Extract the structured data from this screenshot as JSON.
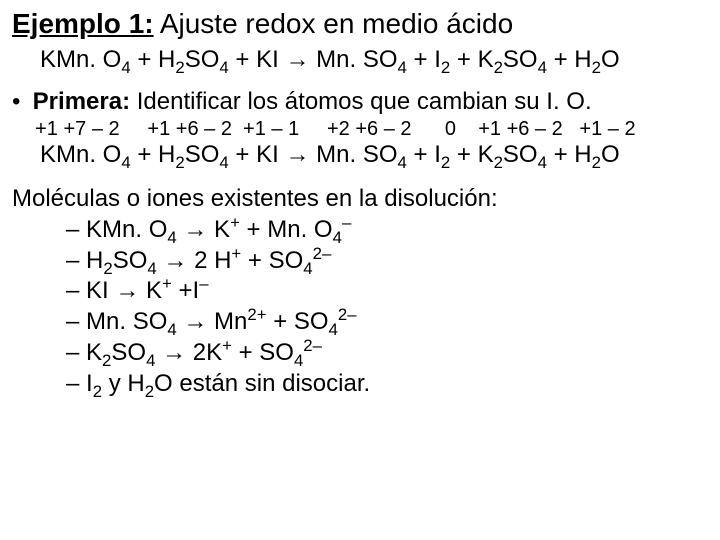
{
  "title": {
    "ex": "Ejemplo 1:",
    "rest": " Ajuste redox en medio ácido"
  },
  "eq1": {
    "lhs": [
      "KMn. O",
      "4",
      " + H",
      "2",
      "SO",
      "4",
      " + KI"
    ],
    "rhs": [
      "Mn. SO",
      "4",
      " + I",
      "2",
      " + K",
      "2",
      "SO",
      "4",
      " + H",
      "2",
      "O"
    ]
  },
  "step": {
    "bullet": "•",
    "label": "Primera:",
    "text": " Identificar los átomos que cambian su I. O."
  },
  "ox": "  +1 +7 – 2     +1 +6 – 2  +1 – 1     +2 +6 – 2      0    +1 +6 – 2   +1 – 2",
  "eq2": {
    "lhs": [
      "KMn. O",
      "4",
      " + H",
      "2",
      "SO",
      "4",
      " + KI "
    ],
    "rhs": [
      " Mn. SO",
      "4",
      " + I",
      "2",
      " + K",
      "2",
      "SO",
      "4",
      " + H",
      "2",
      "O"
    ]
  },
  "moles_intro": "Moléculas o iones existentes en la disolución:",
  "diss": [
    {
      "l": [
        "– KMn. O",
        "4",
        " "
      ],
      "r": [
        " K",
        "+",
        " + Mn. O",
        "4",
        "–"
      ]
    },
    {
      "l": [
        "– H",
        "2",
        "SO",
        "4",
        " "
      ],
      "r": [
        " 2 H",
        "+",
        " + SO",
        "4",
        "2–"
      ]
    },
    {
      "l": [
        "– KI "
      ],
      "r": [
        " K",
        "+",
        " +I",
        "–"
      ]
    },
    {
      "l": [
        "– Mn. SO",
        "4",
        " "
      ],
      "r": [
        " Mn",
        "2+",
        " + SO",
        "4",
        "2–"
      ]
    },
    {
      "l": [
        "– K",
        "2",
        "SO",
        "4",
        " "
      ],
      "r": [
        " 2K",
        "+",
        " + SO",
        "4",
        "2–"
      ]
    }
  ],
  "diss_last": [
    "– I",
    "2",
    "  y H",
    "2",
    "O están sin disociar."
  ],
  "arrow": "→"
}
